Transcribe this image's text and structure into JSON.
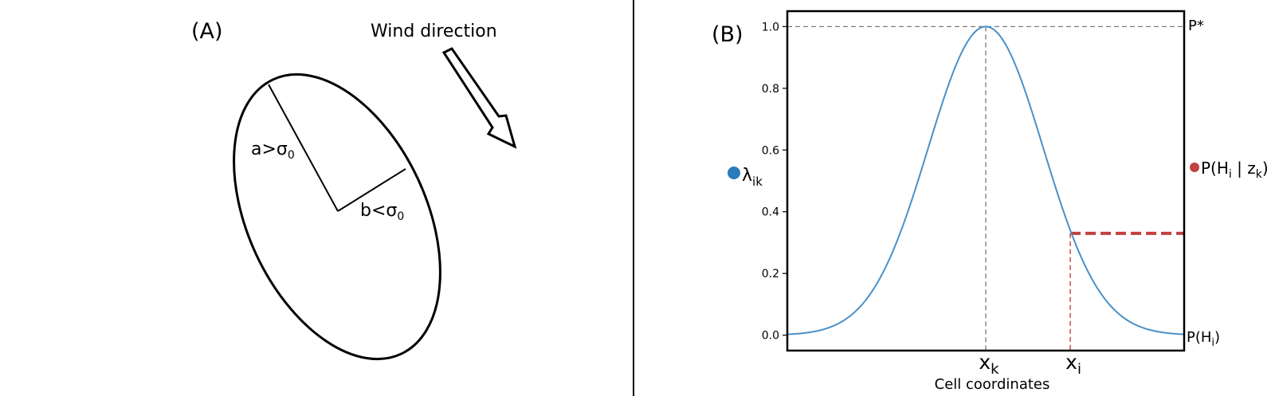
{
  "panel_a": {
    "label": "(A)",
    "wind_label": "Wind direction",
    "major_axis_label": "a>σ",
    "minor_axis_label": "b<σ",
    "sigma_subscript": "0"
  },
  "panel_b": {
    "label": "(B)",
    "legend_left": {
      "symbol": "λ",
      "subscript": "ik",
      "color": "#2b7bba"
    },
    "legend_right": {
      "prefix": "P(H",
      "sub1": "i",
      "mid": " | z",
      "sub2": "k",
      "suffix": ")",
      "color": "#c0413f"
    },
    "right_labels": {
      "top": "P*",
      "bottom_prefix": "P(H",
      "bottom_sub": "i",
      "bottom_suffix": ")"
    },
    "chart_data": {
      "type": "line",
      "xlabel": "Cell coordinates",
      "ylabel": "",
      "ylim": [
        -0.05,
        1.05
      ],
      "xlim": [
        0,
        100
      ],
      "yticks": [
        "0.0",
        "0.2",
        "0.4",
        "0.6",
        "0.8",
        "1.0"
      ],
      "ytick_values": [
        0,
        0.2,
        0.4,
        0.6,
        0.8,
        1.0
      ],
      "peak_x": 50,
      "sigma": 14.5,
      "xk_x": 50,
      "xi_x": 71.3,
      "xi_y": 0.33,
      "x_markers": [
        {
          "base": "x",
          "sub": "k"
        },
        {
          "base": "x",
          "sub": "i"
        }
      ],
      "series": [
        {
          "color": "#4a90c8"
        }
      ],
      "highlight_color": "#c0413f",
      "reference_line_y": 1.0
    }
  }
}
